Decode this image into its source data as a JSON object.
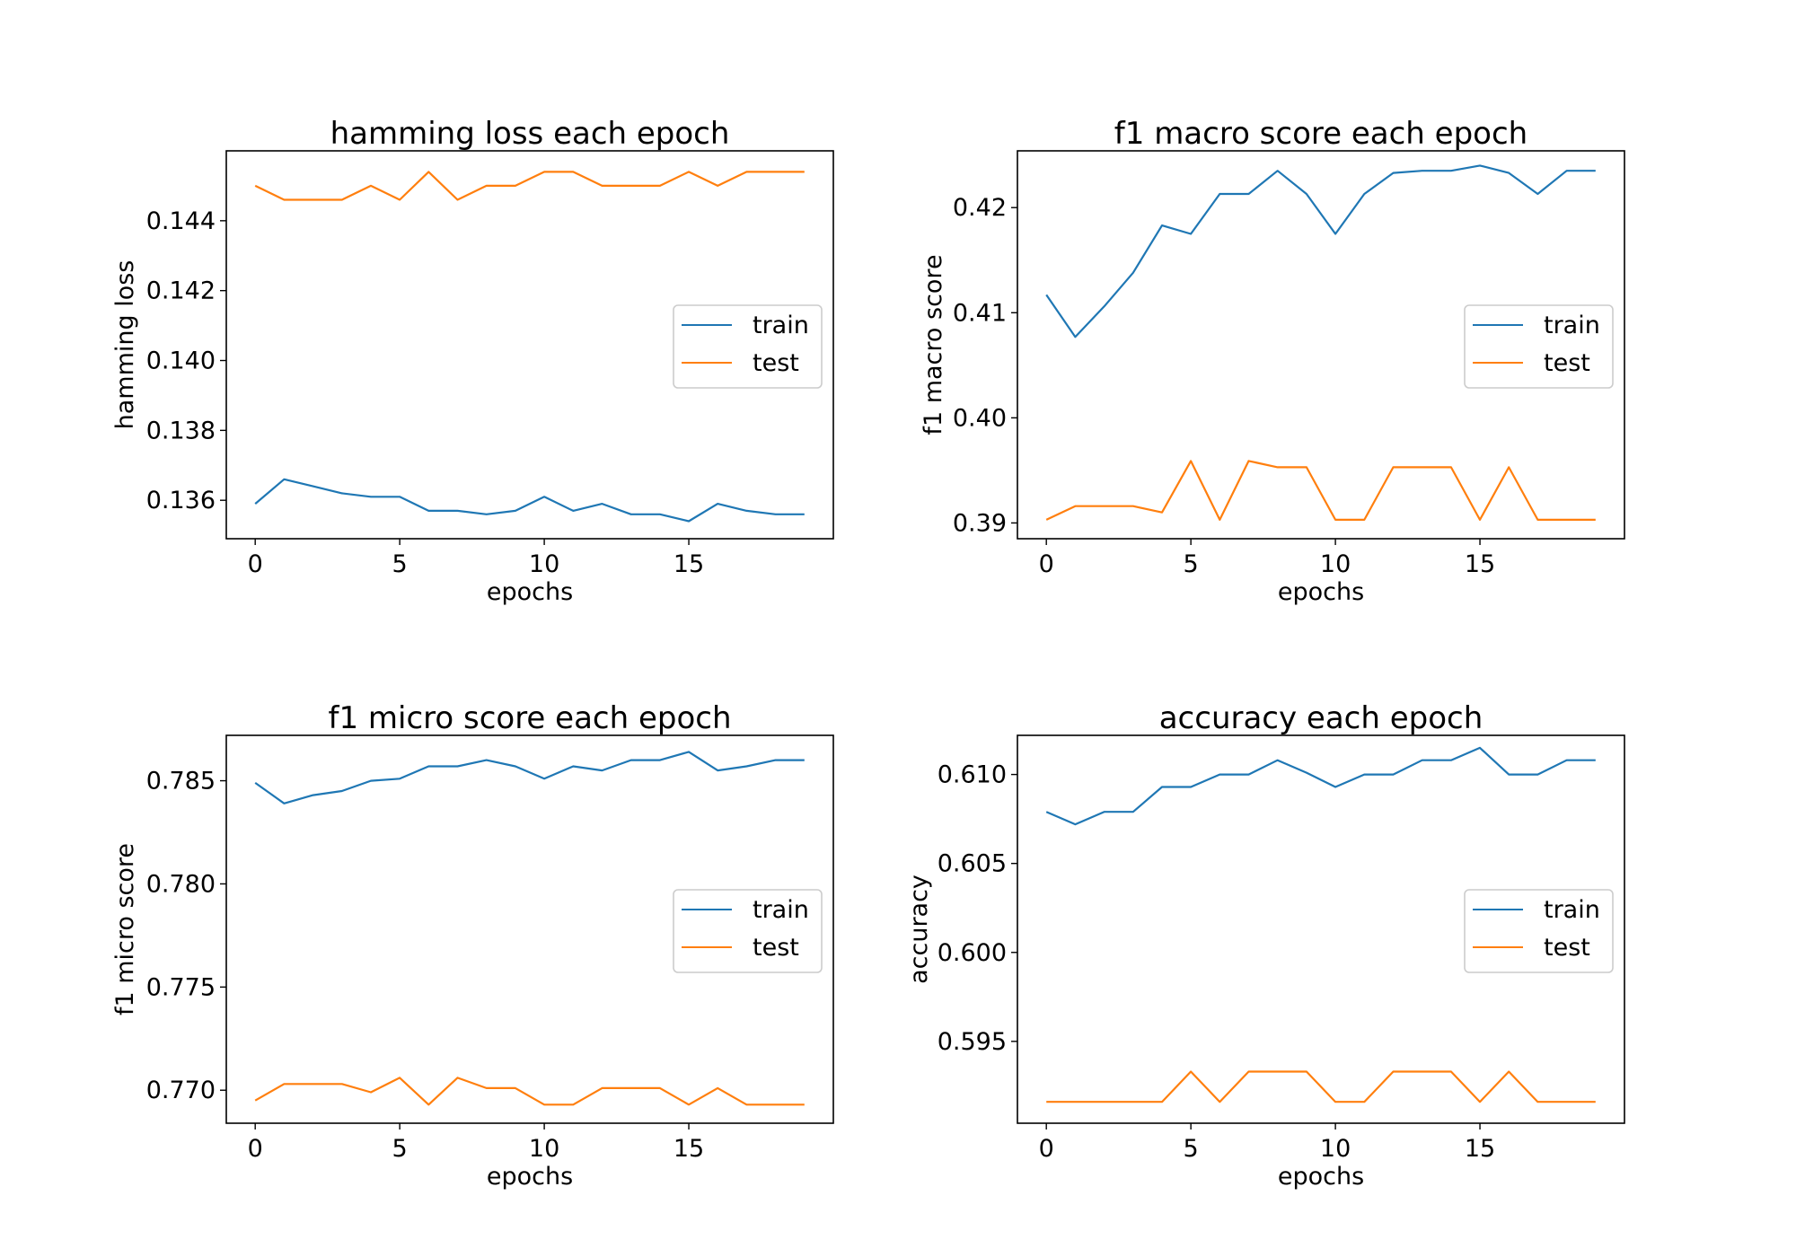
{
  "colors": {
    "train": "#1f77b4",
    "test": "#ff7f0e",
    "axis": "#000000",
    "legend_border": "#cccccc"
  },
  "chart_data": [
    {
      "type": "line",
      "title": "hamming loss each epoch",
      "xlabel": "epochs",
      "ylabel": "hamming loss",
      "xlim": [
        -1,
        20
      ],
      "ylim": [
        0.1349,
        0.146
      ],
      "xticks": [
        0,
        5,
        10,
        15
      ],
      "xtick_labels": [
        "0",
        "5",
        "10",
        "15"
      ],
      "yticks": [
        0.136,
        0.138,
        0.14,
        0.142,
        0.144
      ],
      "ytick_labels": [
        "0.136",
        "0.138",
        "0.140",
        "0.142",
        "0.144"
      ],
      "legend": "center-right",
      "grid": false,
      "x": [
        0,
        1,
        2,
        3,
        4,
        5,
        6,
        7,
        8,
        9,
        10,
        11,
        12,
        13,
        14,
        15,
        16,
        17,
        18,
        19
      ],
      "series": [
        {
          "name": "train",
          "values": [
            0.1359,
            0.1366,
            0.1364,
            0.1362,
            0.1361,
            0.1361,
            0.1357,
            0.1357,
            0.1356,
            0.1357,
            0.1361,
            0.1357,
            0.1359,
            0.1356,
            0.1356,
            0.1354,
            0.1359,
            0.1357,
            0.1356,
            0.1356
          ]
        },
        {
          "name": "test",
          "values": [
            0.145,
            0.1446,
            0.1446,
            0.1446,
            0.145,
            0.1446,
            0.1454,
            0.1446,
            0.145,
            0.145,
            0.1454,
            0.1454,
            0.145,
            0.145,
            0.145,
            0.1454,
            0.145,
            0.1454,
            0.1454,
            0.1454
          ]
        }
      ]
    },
    {
      "type": "line",
      "title": "f1 macro score each epoch",
      "xlabel": "epochs",
      "ylabel": "f1 macro score",
      "xlim": [
        -1,
        20
      ],
      "ylim": [
        0.3885,
        0.4254
      ],
      "xticks": [
        0,
        5,
        10,
        15
      ],
      "xtick_labels": [
        "0",
        "5",
        "10",
        "15"
      ],
      "yticks": [
        0.39,
        0.4,
        0.41,
        0.42
      ],
      "ytick_labels": [
        "0.39",
        "0.40",
        "0.41",
        "0.42"
      ],
      "legend": "center-right",
      "grid": false,
      "x": [
        0,
        1,
        2,
        3,
        4,
        5,
        6,
        7,
        8,
        9,
        10,
        11,
        12,
        13,
        14,
        15,
        16,
        17,
        18,
        19
      ],
      "series": [
        {
          "name": "train",
          "values": [
            0.4117,
            0.4077,
            0.4106,
            0.4138,
            0.4183,
            0.4175,
            0.4213,
            0.4213,
            0.4235,
            0.4213,
            0.4175,
            0.4213,
            0.4233,
            0.4235,
            0.4235,
            0.424,
            0.4233,
            0.4213,
            0.4235,
            0.4235
          ]
        },
        {
          "name": "test",
          "values": [
            0.3903,
            0.3916,
            0.3916,
            0.3916,
            0.391,
            0.3959,
            0.3903,
            0.3959,
            0.3953,
            0.3953,
            0.3903,
            0.3903,
            0.3953,
            0.3953,
            0.3953,
            0.3903,
            0.3953,
            0.3903,
            0.3903,
            0.3903
          ]
        }
      ]
    },
    {
      "type": "line",
      "title": "f1 micro score each epoch",
      "xlabel": "epochs",
      "ylabel": "f1 micro score",
      "xlim": [
        -1,
        20
      ],
      "ylim": [
        0.7684,
        0.7872
      ],
      "xticks": [
        0,
        5,
        10,
        15
      ],
      "xtick_labels": [
        "0",
        "5",
        "10",
        "15"
      ],
      "yticks": [
        0.77,
        0.775,
        0.78,
        0.785
      ],
      "ytick_labels": [
        "0.770",
        "0.775",
        "0.780",
        "0.785"
      ],
      "legend": "center-right",
      "grid": false,
      "x": [
        0,
        1,
        2,
        3,
        4,
        5,
        6,
        7,
        8,
        9,
        10,
        11,
        12,
        13,
        14,
        15,
        16,
        17,
        18,
        19
      ],
      "series": [
        {
          "name": "train",
          "values": [
            0.7849,
            0.7839,
            0.7843,
            0.7845,
            0.785,
            0.7851,
            0.7857,
            0.7857,
            0.786,
            0.7857,
            0.7851,
            0.7857,
            0.7855,
            0.786,
            0.786,
            0.7864,
            0.7855,
            0.7857,
            0.786,
            0.786
          ]
        },
        {
          "name": "test",
          "values": [
            0.7695,
            0.7703,
            0.7703,
            0.7703,
            0.7699,
            0.7706,
            0.7693,
            0.7706,
            0.7701,
            0.7701,
            0.7693,
            0.7693,
            0.7701,
            0.7701,
            0.7701,
            0.7693,
            0.7701,
            0.7693,
            0.7693,
            0.7693
          ]
        }
      ]
    },
    {
      "type": "line",
      "title": "accuracy each epoch",
      "xlabel": "epochs",
      "ylabel": "accuracy",
      "xlim": [
        -1,
        20
      ],
      "ylim": [
        0.5904,
        0.6122
      ],
      "xticks": [
        0,
        5,
        10,
        15
      ],
      "xtick_labels": [
        "0",
        "5",
        "10",
        "15"
      ],
      "yticks": [
        0.595,
        0.6,
        0.605,
        0.61
      ],
      "ytick_labels": [
        "0.595",
        "0.600",
        "0.605",
        "0.610"
      ],
      "legend": "center-right",
      "grid": false,
      "x": [
        0,
        1,
        2,
        3,
        4,
        5,
        6,
        7,
        8,
        9,
        10,
        11,
        12,
        13,
        14,
        15,
        16,
        17,
        18,
        19
      ],
      "series": [
        {
          "name": "train",
          "values": [
            0.6079,
            0.6072,
            0.6079,
            0.6079,
            0.6093,
            0.6093,
            0.61,
            0.61,
            0.6108,
            0.6101,
            0.6093,
            0.61,
            0.61,
            0.6108,
            0.6108,
            0.6115,
            0.61,
            0.61,
            0.6108,
            0.6108
          ]
        },
        {
          "name": "test",
          "values": [
            0.5916,
            0.5916,
            0.5916,
            0.5916,
            0.5916,
            0.5933,
            0.5916,
            0.5933,
            0.5933,
            0.5933,
            0.5916,
            0.5916,
            0.5933,
            0.5933,
            0.5933,
            0.5916,
            0.5933,
            0.5916,
            0.5916,
            0.5916
          ]
        }
      ]
    }
  ]
}
